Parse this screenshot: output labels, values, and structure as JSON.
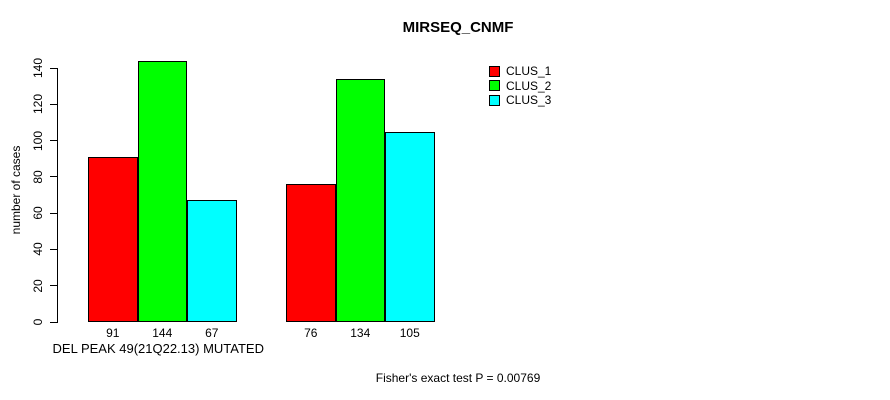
{
  "chart_data": {
    "type": "bar",
    "title": "MIRSEQ_CNMF",
    "ylabel": "number of cases",
    "categories": [
      "DEL PEAK 49(21Q22.13) MUTATED",
      ""
    ],
    "series": [
      {
        "name": "CLUS_1",
        "color": "#ff0000",
        "values": [
          91,
          76
        ]
      },
      {
        "name": "CLUS_2",
        "color": "#00ff00",
        "values": [
          144,
          134
        ]
      },
      {
        "name": "CLUS_3",
        "color": "#00ffff",
        "values": [
          67,
          105
        ]
      }
    ],
    "ylim": [
      0,
      140
    ],
    "yticks": [
      0,
      20,
      40,
      60,
      80,
      100,
      120,
      140
    ],
    "grid": false,
    "legend_position": "top-right",
    "bar_value_labels_shown": true,
    "annotation": "Fisher's exact test P = 0.00769"
  },
  "colors": {
    "background": "#ffffff",
    "axis": "#000000",
    "text": "#000000"
  }
}
